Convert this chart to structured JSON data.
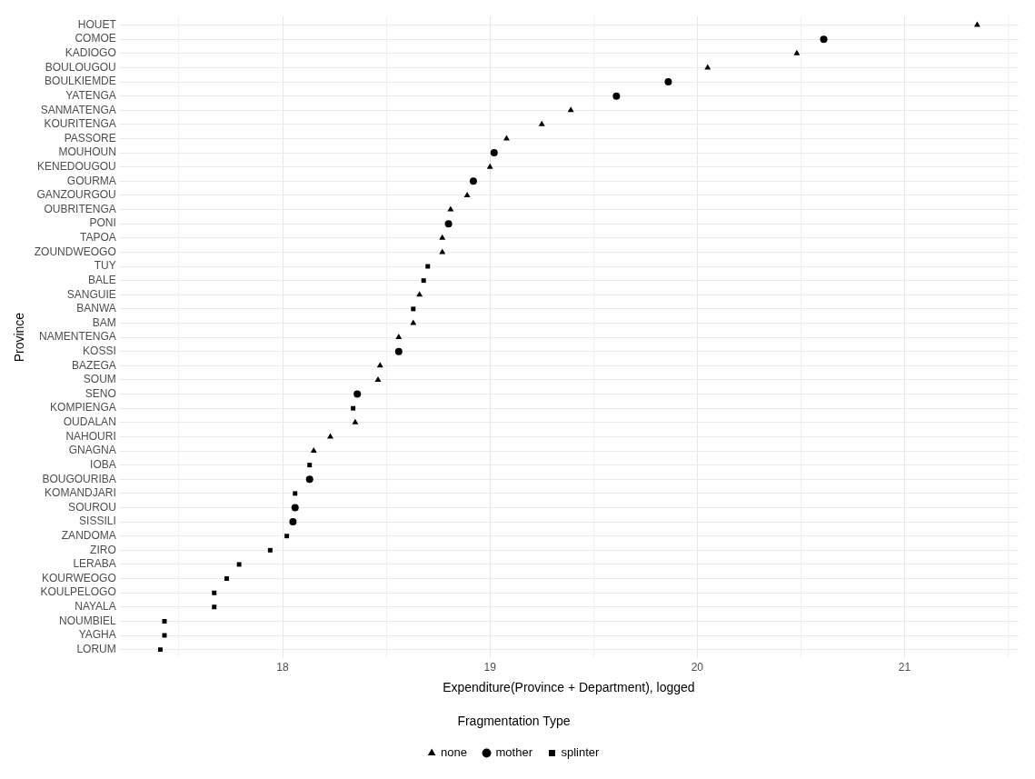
{
  "chart_data": {
    "type": "scatter",
    "orientation": "horizontal",
    "xlabel": "Expenditure(Province + Department), logged",
    "ylabel": "Province",
    "legend_title": "Fragmentation Type",
    "legend": "bottom",
    "grid": true,
    "categories": [
      "HOUET",
      "COMOE",
      "KADIOGO",
      "BOULOUGOU",
      "BOULKIEMDE",
      "YATENGA",
      "SANMATENGA",
      "KOURITENGA",
      "PASSORE",
      "MOUHOUN",
      "KENEDOUGOU",
      "GOURMA",
      "GANZOURGOU",
      "OUBRITENGA",
      "PONI",
      "TAPOA",
      "ZOUNDWEOGO",
      "TUY",
      "BALE",
      "SANGUIE",
      "BANWA",
      "BAM",
      "NAMENTENGA",
      "KOSSI",
      "BAZEGA",
      "SOUM",
      "SENO",
      "KOMPIENGA",
      "OUDALAN",
      "NAHOURI",
      "GNAGNA",
      "IOBA",
      "BOUGOURIBA",
      "KOMANDJARI",
      "SOUROU",
      "SISSILI",
      "ZANDOMA",
      "ZIRO",
      "LERABA",
      "KOURWEOGO",
      "KOULPELOGO",
      "NAYALA",
      "NOUMBIEL",
      "YAGHA",
      "LORUM"
    ],
    "xlim": [
      17.21,
      21.55
    ],
    "xticks": [
      {
        "value": 17.5,
        "label": null
      },
      18,
      {
        "value": 18.5,
        "label": null
      },
      19,
      {
        "value": 19.5,
        "label": null
      },
      20,
      {
        "value": 20.5,
        "label": null
      },
      21,
      {
        "value": 21.5,
        "label": null
      }
    ],
    "series": [
      {
        "name": "none",
        "color": "#000000",
        "marker": "triangle",
        "values": [
          21.35,
          null,
          20.48,
          20.05,
          null,
          null,
          19.39,
          19.25,
          19.08,
          null,
          19.0,
          null,
          18.89,
          18.81,
          null,
          18.77,
          18.77,
          null,
          null,
          18.66,
          null,
          18.63,
          18.56,
          null,
          18.47,
          18.46,
          null,
          null,
          18.35,
          18.23,
          18.15,
          null,
          null,
          null,
          null,
          null,
          null,
          null,
          null,
          null,
          null,
          null,
          null,
          null,
          null
        ]
      },
      {
        "name": "mother",
        "color": "#000000",
        "marker": "circle",
        "values": [
          null,
          20.61,
          null,
          null,
          19.86,
          19.61,
          null,
          null,
          null,
          19.02,
          null,
          18.92,
          null,
          null,
          18.8,
          null,
          null,
          null,
          null,
          null,
          null,
          null,
          null,
          18.56,
          null,
          null,
          18.36,
          null,
          null,
          null,
          null,
          null,
          18.13,
          null,
          18.06,
          18.05,
          null,
          null,
          null,
          null,
          null,
          null,
          null,
          null,
          null
        ]
      },
      {
        "name": "splinter",
        "color": "#000000",
        "marker": "square",
        "values": [
          null,
          null,
          null,
          null,
          null,
          null,
          null,
          null,
          null,
          null,
          null,
          null,
          null,
          null,
          null,
          null,
          null,
          18.7,
          18.68,
          null,
          18.63,
          null,
          null,
          null,
          null,
          null,
          null,
          18.34,
          null,
          null,
          null,
          18.13,
          null,
          18.06,
          null,
          null,
          18.02,
          17.94,
          17.79,
          17.73,
          17.67,
          17.67,
          17.43,
          17.43,
          17.41
        ]
      }
    ]
  }
}
